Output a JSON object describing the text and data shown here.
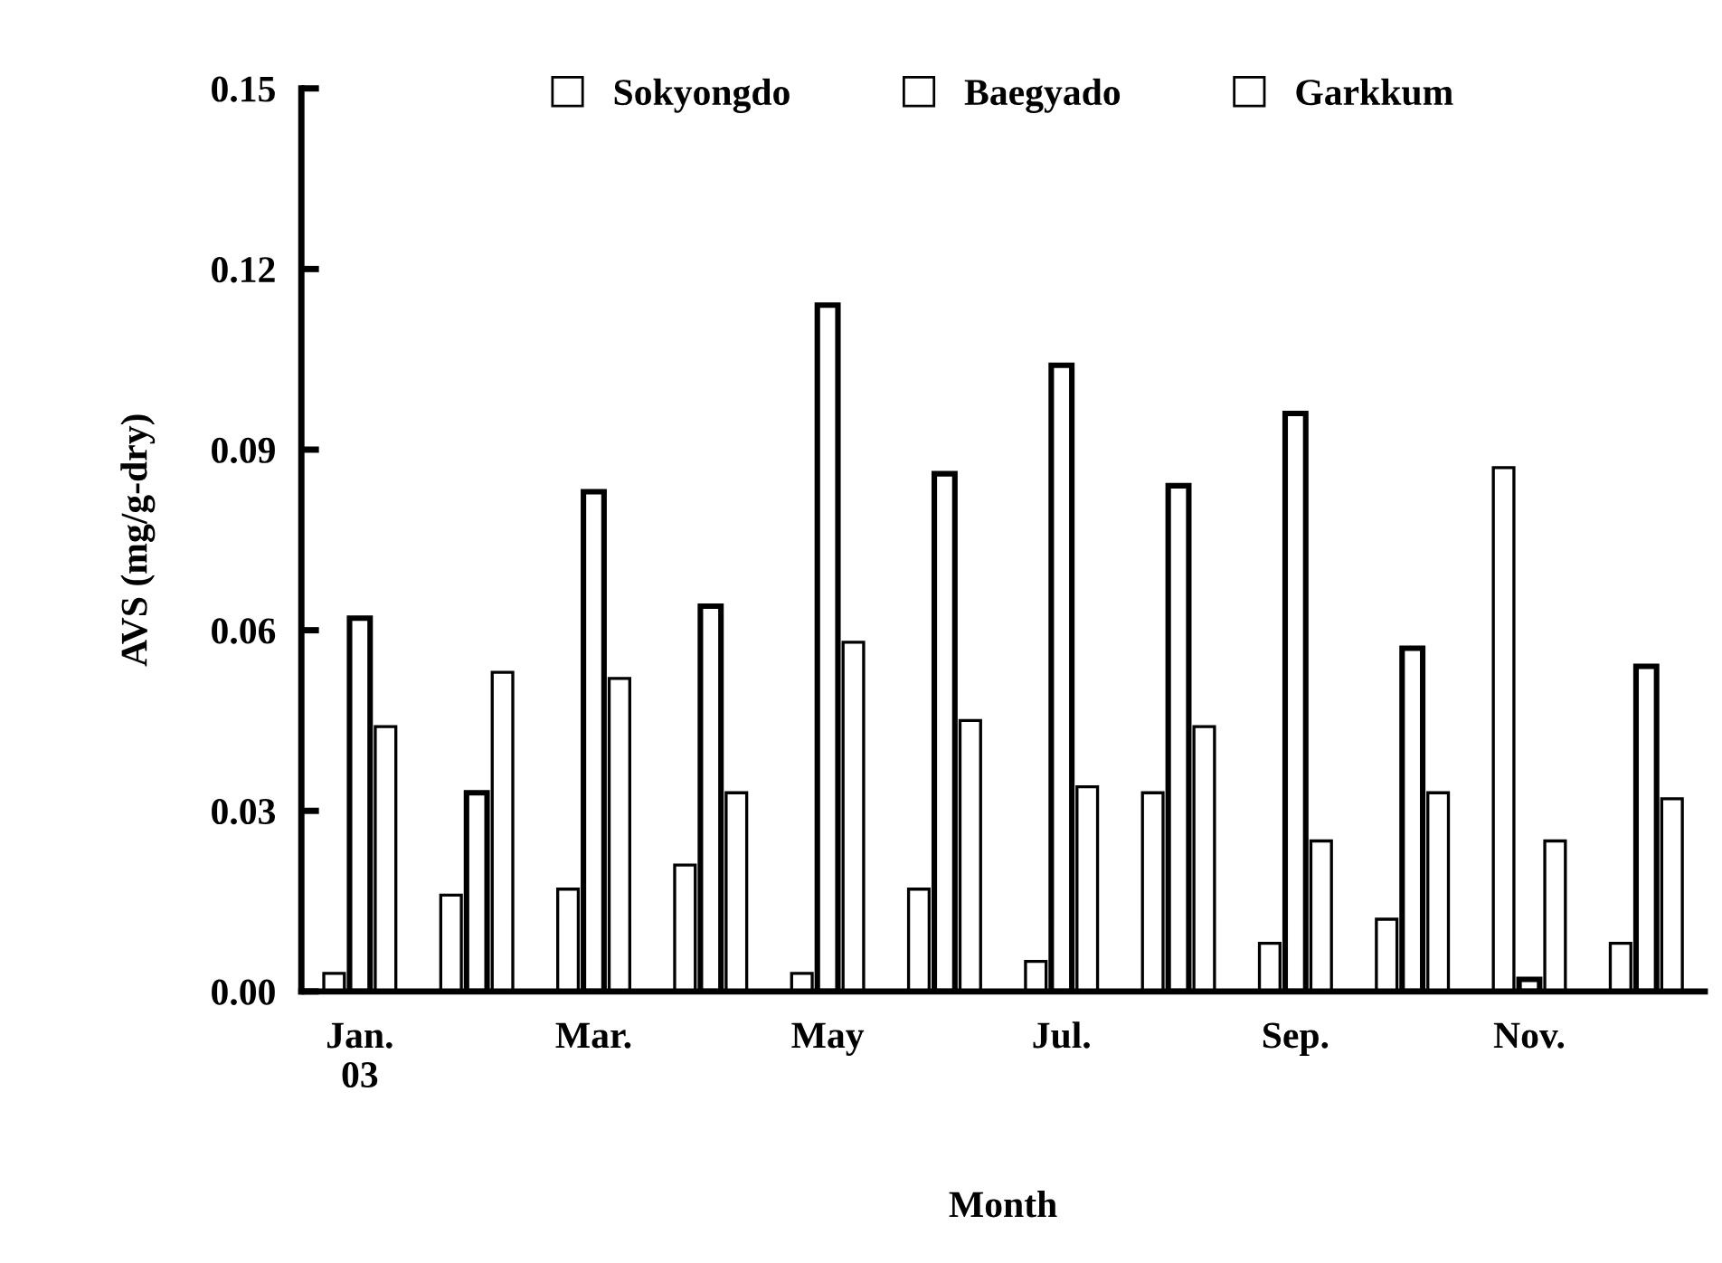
{
  "chart_data": {
    "type": "bar",
    "xlabel": "Month",
    "ylabel": "AVS (mg/g-dry)",
    "categories": [
      "Jan.\n03",
      null,
      "Mar.",
      null,
      "May",
      null,
      "Jul.",
      null,
      "Sep.",
      null,
      "Nov.",
      null
    ],
    "series": [
      {
        "name": "Sokyongdo",
        "color": "#ffffff",
        "values": [
          0.003,
          0.016,
          0.017,
          0.021,
          0.003,
          0.017,
          0.005,
          0.033,
          0.008,
          0.012,
          0.087,
          0.008
        ]
      },
      {
        "name": "Baegyado",
        "color": "#ffffff",
        "values": [
          0.062,
          0.033,
          0.083,
          0.064,
          0.114,
          0.086,
          0.104,
          0.084,
          0.096,
          0.057,
          0.002,
          0.054
        ]
      },
      {
        "name": "Garkkum",
        "color": "#ffffff",
        "values": [
          0.044,
          0.053,
          0.052,
          0.033,
          0.058,
          0.045,
          0.034,
          0.044,
          0.025,
          0.033,
          0.025,
          0.032
        ]
      }
    ],
    "ylim": [
      0,
      0.15
    ],
    "yticks": [
      {
        "value": 0,
        "label": "0.00"
      },
      {
        "value": 0.03,
        "label": "0.03"
      },
      {
        "value": 0.06,
        "label": "0.06"
      },
      {
        "value": 0.09,
        "label": "0.09"
      },
      {
        "value": 0.12,
        "label": "0.12"
      },
      {
        "value": 0.15,
        "label": "0.15"
      }
    ],
    "legend": "top",
    "grid": false
  }
}
